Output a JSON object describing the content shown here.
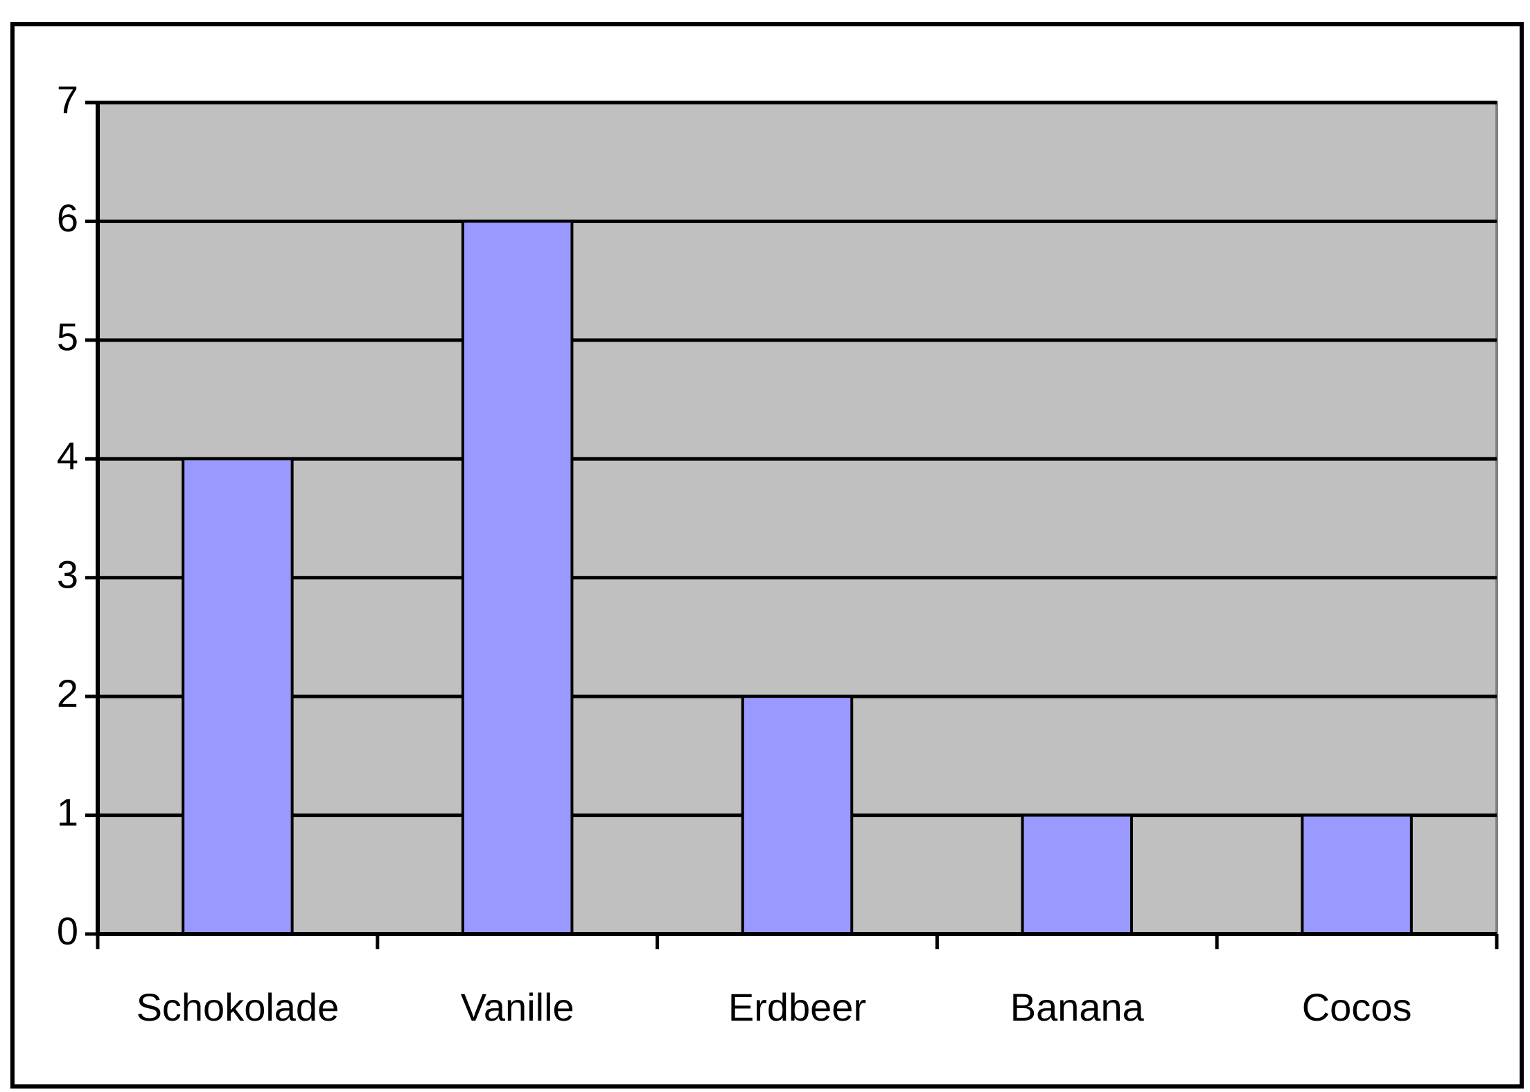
{
  "chart_data": {
    "type": "bar",
    "categories": [
      "Schokolade",
      "Vanille",
      "Erdbeer",
      "Banana",
      "Cocos"
    ],
    "values": [
      4,
      6,
      2,
      1,
      1
    ],
    "color": "#9999ff",
    "ylim": [
      0,
      7
    ],
    "yticks": [
      0,
      1,
      2,
      3,
      4,
      5,
      6,
      7
    ],
    "grid": true
  }
}
